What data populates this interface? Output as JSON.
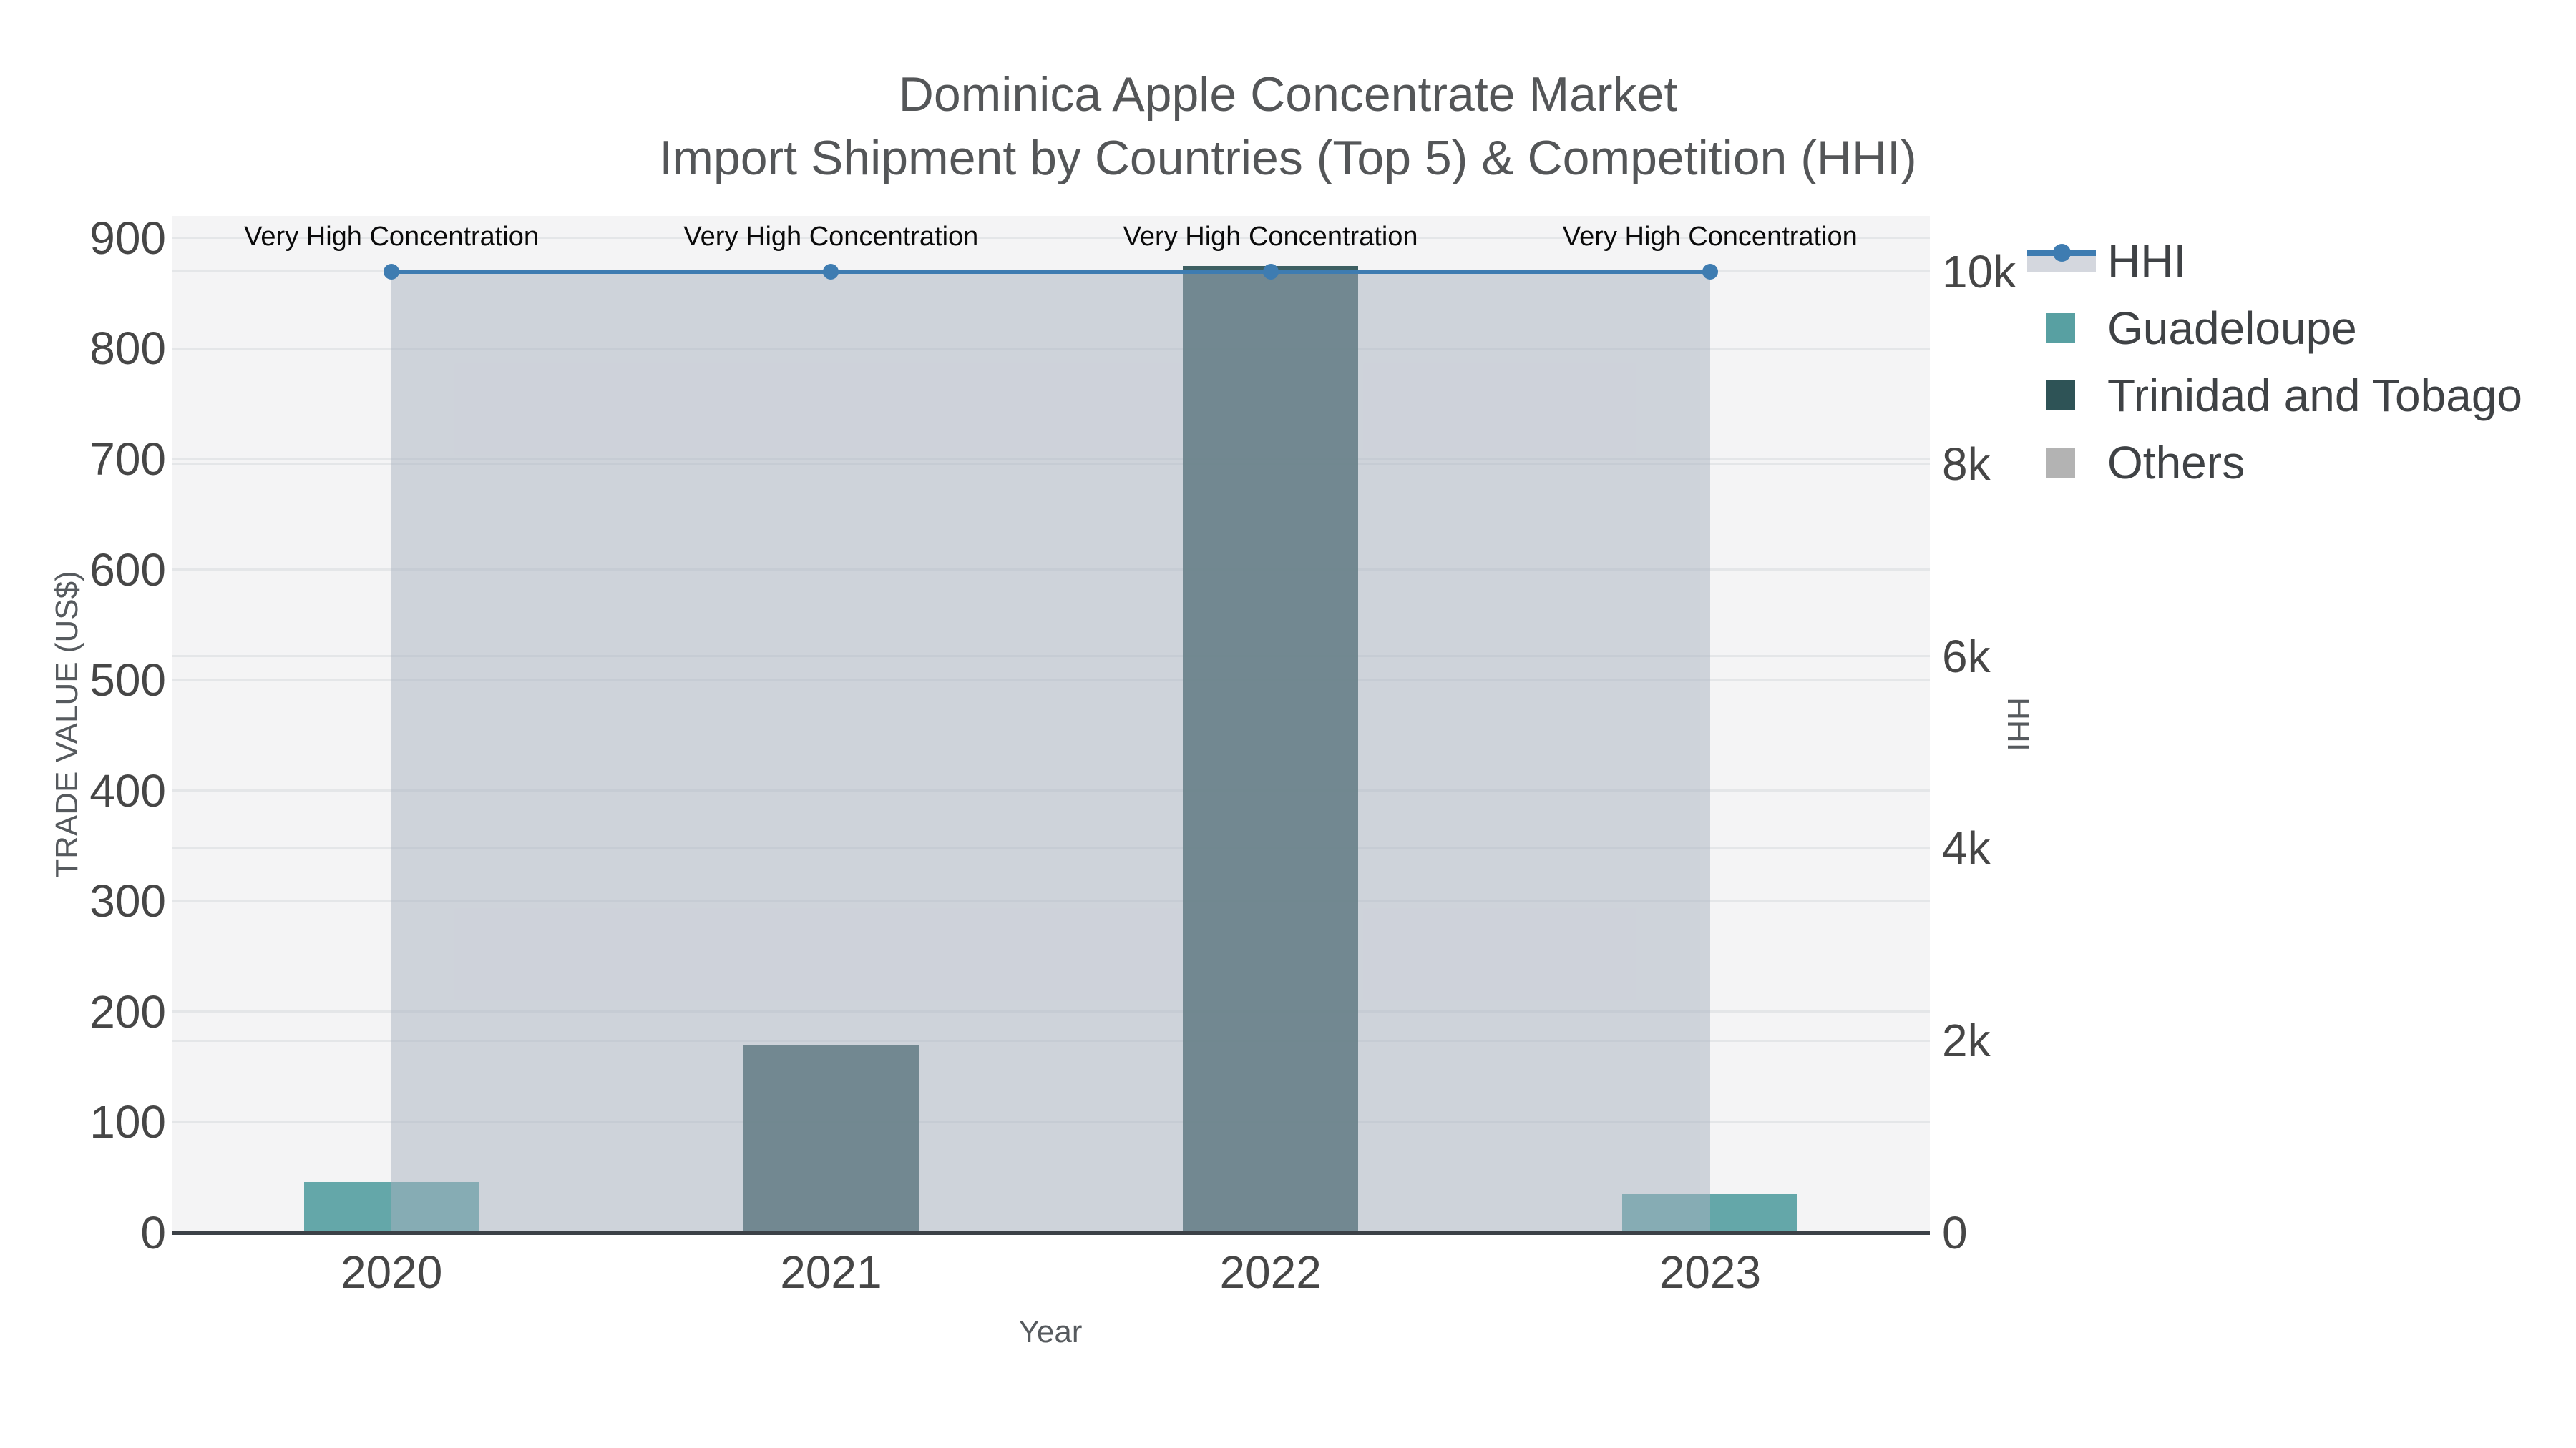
{
  "title": {
    "line1": "Dominica Apple Concentrate Market",
    "line2": "Import Shipment by Countries (Top 5) & Competition (HHI)"
  },
  "colors": {
    "guadeloupe": "#58a0a2",
    "trinidad": "#2e5356",
    "others": "#b3b3b3",
    "hhi_line": "#3e7cb1",
    "hhi_fill": "rgba(168,177,192,0.5)",
    "hhi_fill_legend": "#d4d7de",
    "plot_bg": "#f4f4f5",
    "gridline": "#e4e6e8",
    "axis_line": "#3c4147"
  },
  "chart_data": {
    "type": "bar",
    "title": "Dominica Apple Concentrate Market Import Shipment by Countries (Top 5) & Competition (HHI)",
    "categories": [
      "2020",
      "2021",
      "2022",
      "2023"
    ],
    "series": [
      {
        "name": "Guadeloupe",
        "kind": "bar",
        "color_key": "guadeloupe",
        "values": [
          46,
          0,
          0,
          35
        ]
      },
      {
        "name": "Trinidad and Tobago",
        "kind": "bar",
        "color_key": "trinidad",
        "values": [
          0,
          170,
          875,
          0
        ]
      },
      {
        "name": "Others",
        "kind": "bar",
        "color_key": "others",
        "values": [
          0,
          0,
          0,
          0
        ]
      },
      {
        "name": "HHI",
        "kind": "line",
        "axis": "right",
        "color_key": "hhi_line",
        "fill": true,
        "values": [
          10000,
          10000,
          10000,
          10000
        ]
      }
    ],
    "annotations": [
      {
        "x": "2020",
        "text": "Very High Concentration"
      },
      {
        "x": "2021",
        "text": "Very High Concentration"
      },
      {
        "x": "2022",
        "text": "Very High Concentration"
      },
      {
        "x": "2023",
        "text": "Very High Concentration"
      }
    ],
    "xlabel": "Year",
    "ylabel": "TRADE VALUE (US$)",
    "y2label": "HHI",
    "ylim": [
      0,
      920
    ],
    "y2lim": [
      0,
      10580
    ],
    "yticks": [
      {
        "v": 0,
        "label": "0"
      },
      {
        "v": 100,
        "label": "100"
      },
      {
        "v": 200,
        "label": "200"
      },
      {
        "v": 300,
        "label": "300"
      },
      {
        "v": 400,
        "label": "400"
      },
      {
        "v": 500,
        "label": "500"
      },
      {
        "v": 600,
        "label": "600"
      },
      {
        "v": 700,
        "label": "700"
      },
      {
        "v": 800,
        "label": "800"
      },
      {
        "v": 900,
        "label": "900"
      }
    ],
    "y2ticks": [
      {
        "v": 0,
        "label": "0"
      },
      {
        "v": 2000,
        "label": "2k"
      },
      {
        "v": 4000,
        "label": "4k"
      },
      {
        "v": 6000,
        "label": "6k"
      },
      {
        "v": 8000,
        "label": "8k"
      },
      {
        "v": 10000,
        "label": "10k"
      }
    ],
    "grid": true,
    "legend_position": "top-right-outside",
    "legend": [
      "HHI",
      "Guadeloupe",
      "Trinidad and Tobago",
      "Others"
    ]
  }
}
